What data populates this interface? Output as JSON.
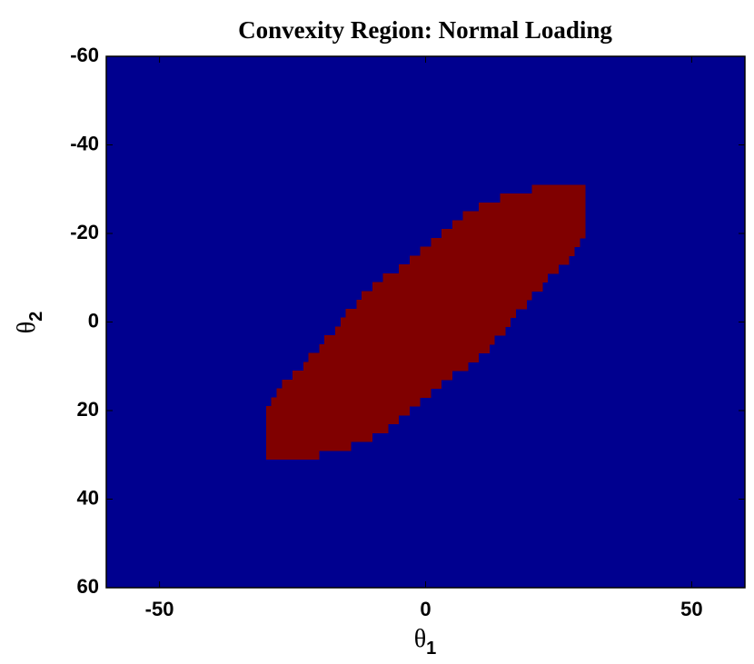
{
  "chart_data": {
    "type": "region",
    "title": "Convexity Region: Normal Loading",
    "xlabel": {
      "symbol": "θ",
      "subscript": "1"
    },
    "ylabel": {
      "symbol": "θ",
      "subscript": "2"
    },
    "xlim": [
      -60,
      60
    ],
    "ylim": [
      -60,
      60
    ],
    "y_reversed": true,
    "xticks": [
      -50,
      0,
      50
    ],
    "yticks": [
      -60,
      -40,
      -20,
      0,
      20,
      40,
      60
    ],
    "background_color": "#00008f",
    "color": "#800000",
    "row_height": 2,
    "rows": [
      -30,
      -28,
      -26,
      -24,
      -22,
      -20,
      -18,
      -16,
      -14,
      -12,
      -10,
      -8,
      -6,
      -4,
      -2,
      0,
      2,
      4,
      6,
      8,
      10,
      12,
      14,
      16,
      18,
      20,
      22,
      24,
      26,
      28,
      30
    ],
    "x_start": [
      20,
      14,
      10,
      7,
      5,
      3,
      1,
      -1,
      -3,
      -5,
      -8,
      -10,
      -12,
      -13,
      -15,
      -16,
      -17,
      -19,
      -20,
      -22,
      -23,
      -25,
      -27,
      -28,
      -29,
      -30,
      -30,
      -30,
      -30,
      -30,
      -30
    ],
    "x_end": [
      30,
      30,
      30,
      30,
      30,
      30,
      29,
      28,
      27,
      25,
      23,
      22,
      20,
      19,
      17,
      16,
      15,
      13,
      12,
      10,
      8,
      5,
      3,
      1,
      -1,
      -3,
      -5,
      -7,
      -10,
      -14,
      -20
    ]
  }
}
